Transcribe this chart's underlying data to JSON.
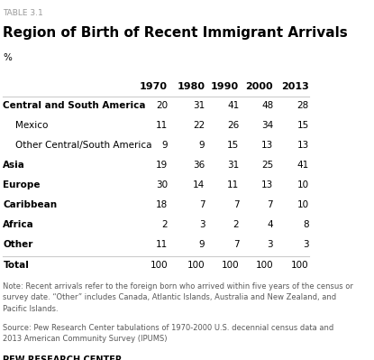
{
  "table_label": "TABLE 3.1",
  "title": "Region of Birth of Recent Immigrant Arrivals",
  "percent_label": "%",
  "columns": [
    "1970",
    "1980",
    "1990",
    "2000",
    "2013"
  ],
  "rows": [
    {
      "label": "Central and South America",
      "bold": true,
      "indent": false,
      "values": [
        20,
        31,
        41,
        48,
        28
      ]
    },
    {
      "label": "Mexico",
      "bold": false,
      "indent": true,
      "values": [
        11,
        22,
        26,
        34,
        15
      ]
    },
    {
      "label": "Other Central/South America",
      "bold": false,
      "indent": true,
      "values": [
        9,
        9,
        15,
        13,
        13
      ]
    },
    {
      "label": "Asia",
      "bold": true,
      "indent": false,
      "values": [
        19,
        36,
        31,
        25,
        41
      ]
    },
    {
      "label": "Europe",
      "bold": true,
      "indent": false,
      "values": [
        30,
        14,
        11,
        13,
        10
      ]
    },
    {
      "label": "Caribbean",
      "bold": true,
      "indent": false,
      "values": [
        18,
        7,
        7,
        7,
        10
      ]
    },
    {
      "label": "Africa",
      "bold": true,
      "indent": false,
      "values": [
        2,
        3,
        2,
        4,
        8
      ]
    },
    {
      "label": "Other",
      "bold": true,
      "indent": false,
      "values": [
        11,
        9,
        7,
        3,
        3
      ]
    },
    {
      "label": "Total",
      "bold": true,
      "indent": false,
      "values": [
        100,
        100,
        100,
        100,
        100
      ]
    }
  ],
  "note": "Note: Recent arrivals refer to the foreign born who arrived within five years of the census or\nsurvey date. “Other” includes Canada, Atlantic Islands, Australia and New Zealand, and\nPacific Islands.",
  "source": "Source: Pew Research Center tabulations of 1970-2000 U.S. decennial census data and\n2013 American Community Survey (IPUMS)",
  "footer": "PEW RESEARCH CENTER",
  "bg_color": "#ffffff",
  "header_color": "#000000",
  "text_color": "#000000",
  "note_color": "#595959",
  "table_label_color": "#999999",
  "line_color": "#cccccc"
}
